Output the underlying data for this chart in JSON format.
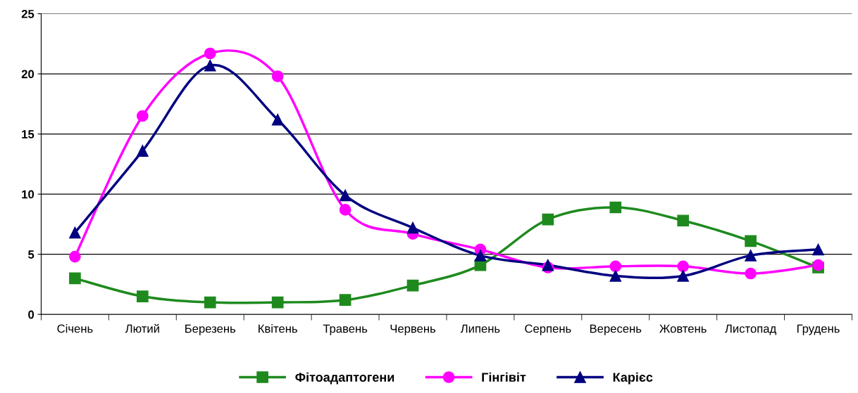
{
  "chart_data": {
    "type": "line",
    "categories": [
      "Січень",
      "Лютий",
      "Березень",
      "Квітень",
      "Травень",
      "Червень",
      "Липень",
      "Серпень",
      "Вересень",
      "Жовтень",
      "Листопад",
      "Грудень"
    ],
    "series": [
      {
        "name": "Фітоадаптогени",
        "color": "#1e8a1e",
        "marker": "square",
        "values": [
          3.0,
          1.5,
          1.0,
          1.0,
          1.2,
          2.4,
          4.1,
          7.9,
          8.9,
          7.8,
          6.1,
          3.9
        ]
      },
      {
        "name": "Гінгівіт",
        "color": "#ff00ff",
        "marker": "circle",
        "values": [
          4.8,
          16.5,
          21.7,
          19.8,
          8.7,
          6.7,
          5.4,
          3.9,
          4.0,
          4.0,
          3.4,
          4.1
        ]
      },
      {
        "name": "Карієс",
        "color": "#000080",
        "marker": "triangle",
        "values": [
          6.8,
          13.6,
          20.7,
          16.2,
          9.9,
          7.2,
          4.9,
          4.1,
          3.2,
          3.2,
          4.9,
          5.4
        ]
      }
    ],
    "ylim": [
      0,
      25
    ],
    "yticks": [
      0,
      5,
      10,
      15,
      20,
      25
    ],
    "grid": "y",
    "legend": "bottom",
    "line_style": "solid"
  }
}
